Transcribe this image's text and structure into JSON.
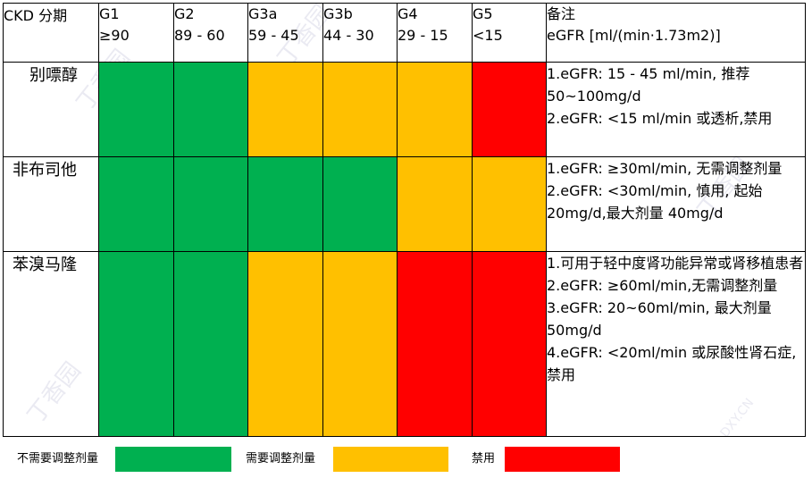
{
  "table": {
    "corner_label": "CKD 分期",
    "stages": [
      {
        "name": "G1",
        "range": "≥90"
      },
      {
        "name": "G2",
        "range": "89 - 60"
      },
      {
        "name": "G3a",
        "range": "59 - 45"
      },
      {
        "name": "G3b",
        "range": "44 - 30"
      },
      {
        "name": "G4",
        "range": "29 - 15"
      },
      {
        "name": "G5",
        "range": "<15"
      }
    ],
    "notes_header": {
      "title": "备注",
      "unit": "eGFR [ml/(min·1.73m2)]"
    },
    "rows": [
      {
        "drug": "别嘌醇",
        "cells": [
          "green",
          "green",
          "yellow",
          "yellow",
          "yellow",
          "red"
        ],
        "notes": [
          "1.eGFR: 15 - 45 ml/min, 推荐50~100mg/d",
          "2.eGFR: <15 ml/min 或透析,禁用"
        ]
      },
      {
        "drug": "非布司他",
        "cells": [
          "green",
          "green",
          "green",
          "green",
          "yellow",
          "yellow"
        ],
        "notes": [
          "1.eGFR: ≥30ml/min, 无需调整剂量",
          "2.eGFR: <30ml/min, 慎用, 起始 20mg/d,最大剂量 40mg/d"
        ]
      },
      {
        "drug": "苯溴马隆",
        "cells": [
          "green",
          "green",
          "yellow",
          "yellow",
          "red",
          "red"
        ],
        "notes": [
          "1.可用于轻中度肾功能异常或肾移植患者",
          "2.eGFR: ≥60ml/min,无需调整剂量",
          "3.eGFR: 20~60ml/min, 最大剂量 50mg/d",
          "4.eGFR: <20ml/min 或尿酸性肾石症, 禁用"
        ]
      }
    ]
  },
  "legend": [
    {
      "label": "不需要调整剂量",
      "color": "#00b050"
    },
    {
      "label": "需要调整剂量",
      "color": "#ffc000"
    },
    {
      "label": "禁用",
      "color": "#ff0000"
    }
  ],
  "colors": {
    "green": "#00b050",
    "yellow": "#ffc000",
    "red": "#ff0000"
  },
  "watermark": {
    "text": "丁香园",
    "domain": "DXY.CN"
  }
}
